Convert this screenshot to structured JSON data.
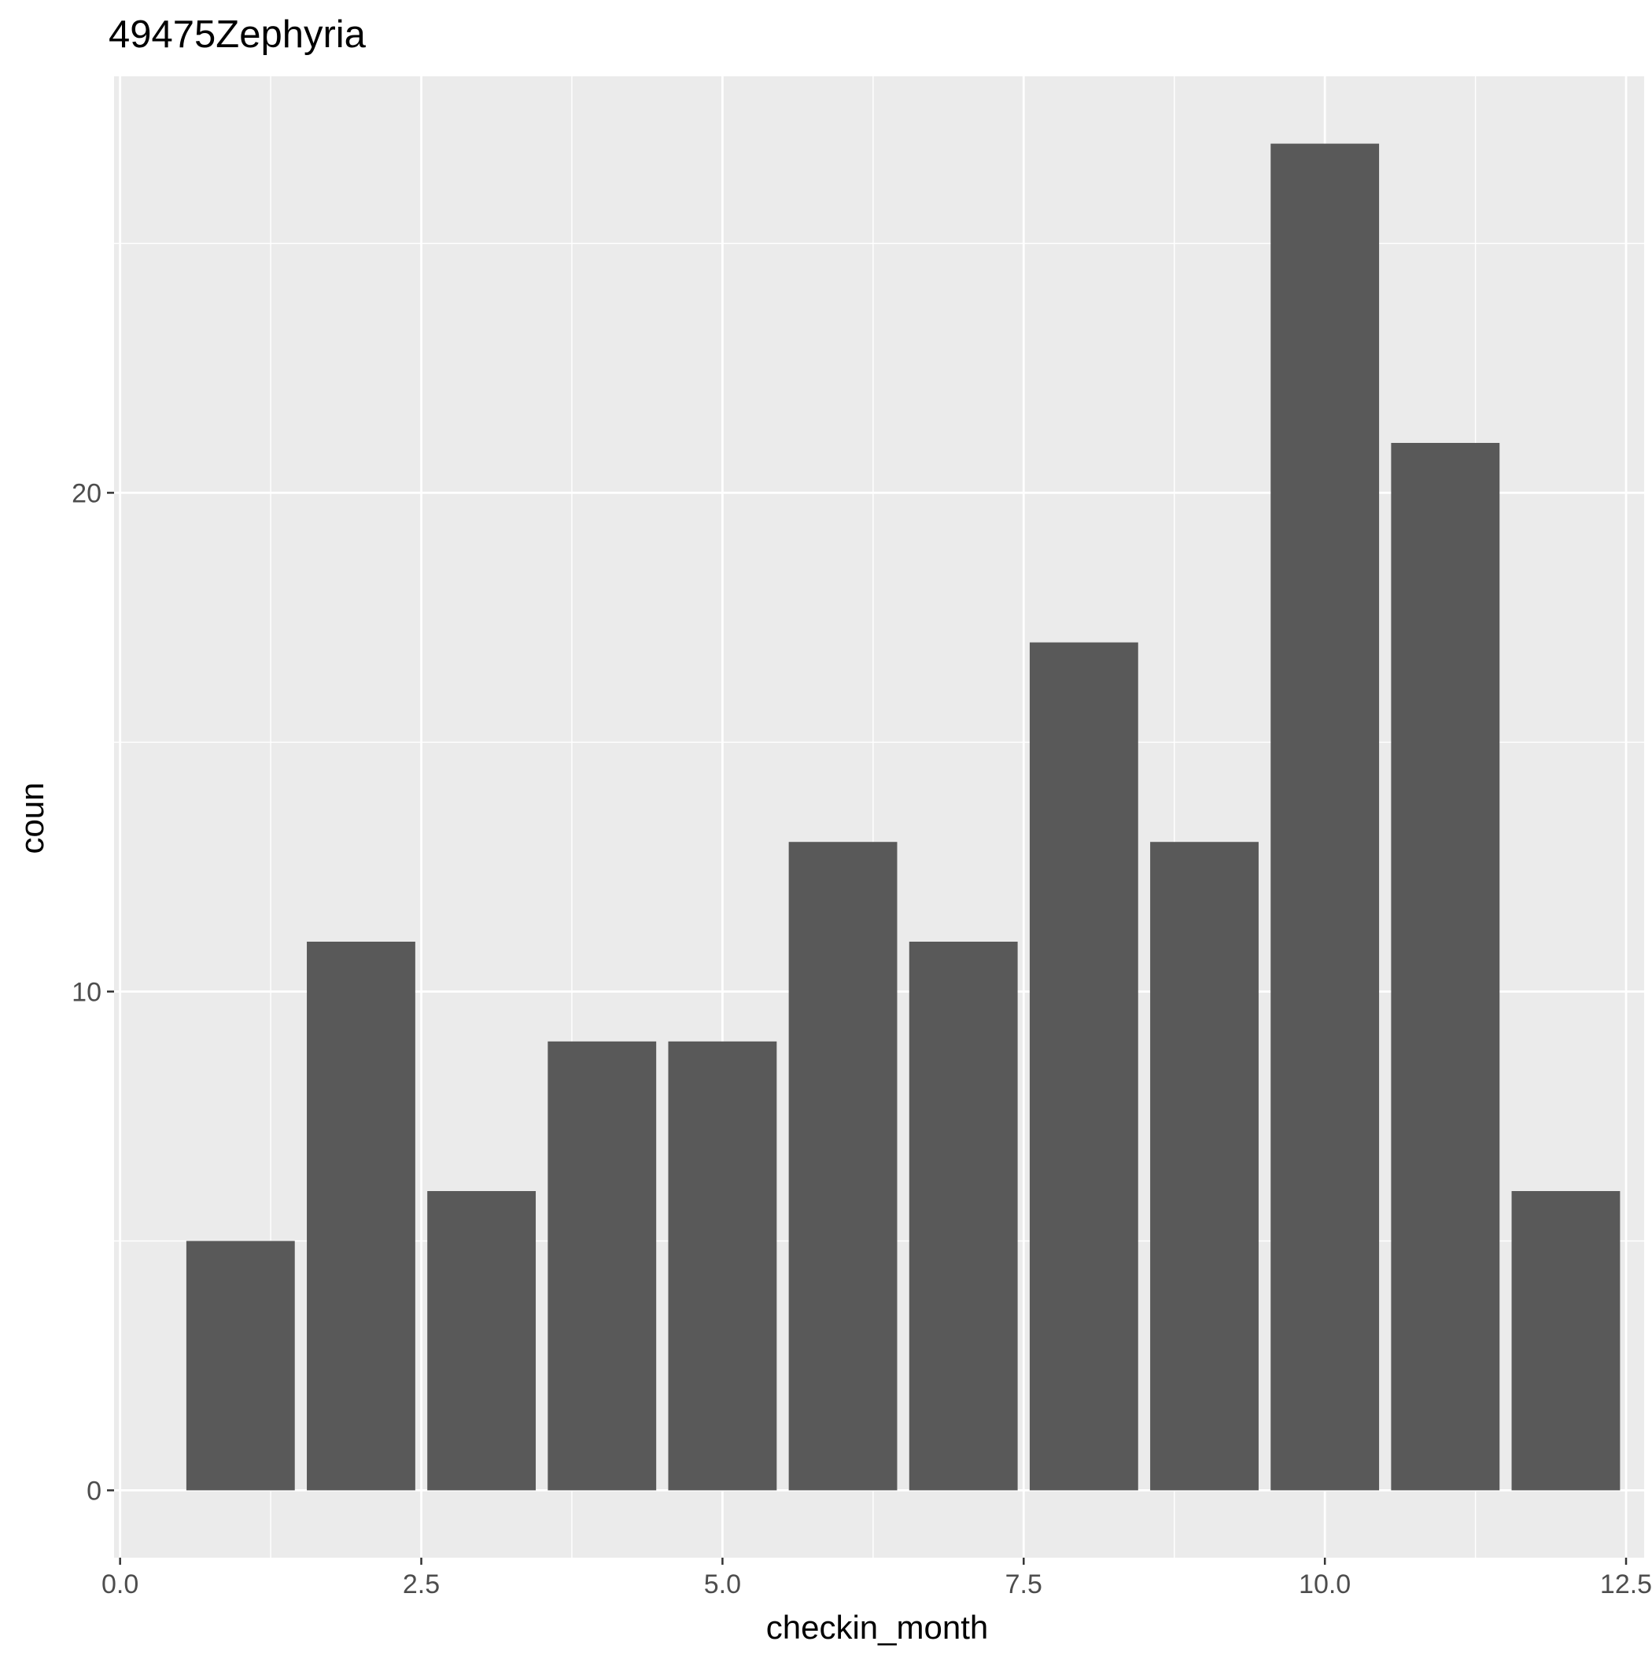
{
  "chart_data": {
    "type": "bar",
    "title": "49475Zephyria",
    "xlabel": "checkin_month",
    "ylabel": "coun",
    "x": [
      1,
      2,
      3,
      4,
      5,
      6,
      7,
      8,
      9,
      10,
      11,
      12
    ],
    "values": [
      5,
      11,
      6,
      9,
      9,
      13,
      11,
      17,
      13,
      27,
      21,
      6
    ],
    "xlim": [
      -0.05,
      12.65
    ],
    "ylim": [
      -1.35,
      28.35
    ],
    "x_ticks": [
      0,
      2.5,
      5,
      7.5,
      10,
      12.5
    ],
    "x_tick_labels": [
      "0.0",
      "2.5",
      "5.0",
      "7.5",
      "10.0",
      "12.5"
    ],
    "y_ticks": [
      0,
      10,
      20
    ],
    "y_tick_labels": [
      "0",
      "10",
      "20"
    ],
    "grid": true,
    "legend": "none",
    "colors": {
      "bar": "#595959",
      "panel_background": "#ebebeb",
      "grid": "#ffffff",
      "axis_text": "#4d4d4d",
      "tick": "#333333",
      "title": "#000000"
    }
  }
}
